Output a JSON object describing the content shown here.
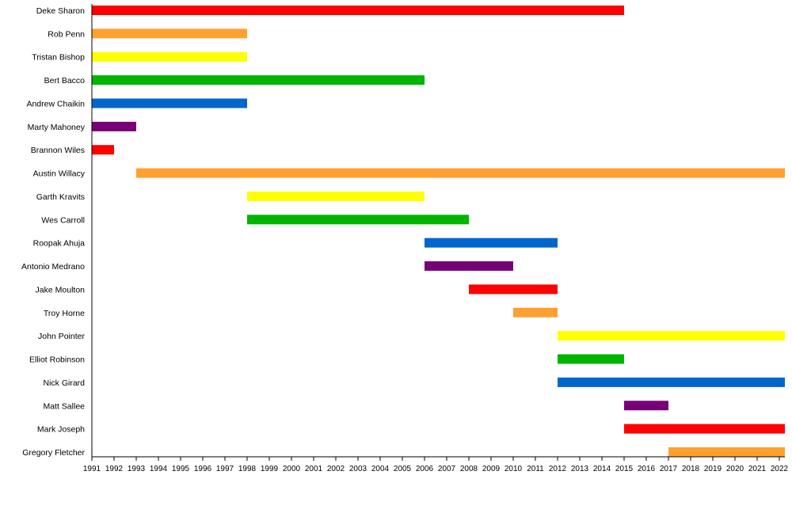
{
  "chart_data": {
    "type": "bar",
    "orientation": "horizontal-timeline",
    "title": "",
    "xlabel": "",
    "ylabel": "",
    "x_ticks": [
      1991,
      1992,
      1993,
      1994,
      1995,
      1996,
      1997,
      1998,
      1999,
      2000,
      2001,
      2002,
      2003,
      2004,
      2005,
      2006,
      2007,
      2008,
      2009,
      2010,
      2011,
      2012,
      2013,
      2014,
      2015,
      2016,
      2017,
      2018,
      2019,
      2020,
      2021,
      2022
    ],
    "xlim": [
      1991,
      2022.4
    ],
    "grid": false,
    "legend": "none",
    "colors": {
      "red": "#ff0000",
      "orange": "#ffa030",
      "yellow": "#ffff00",
      "green": "#00b400",
      "blue": "#0066cc",
      "purple": "#770077"
    },
    "series": [
      {
        "name": "Deke Sharon",
        "start": 1991,
        "end": 2015,
        "color": "red"
      },
      {
        "name": "Rob Penn",
        "start": 1991,
        "end": 1998,
        "color": "orange"
      },
      {
        "name": "Tristan Bishop",
        "start": 1991,
        "end": 1998,
        "color": "yellow"
      },
      {
        "name": "Bert Bacco",
        "start": 1991,
        "end": 2006,
        "color": "green"
      },
      {
        "name": "Andrew Chaikin",
        "start": 1991,
        "end": 1998,
        "color": "blue"
      },
      {
        "name": "Marty Mahoney",
        "start": 1991,
        "end": 1993,
        "color": "purple"
      },
      {
        "name": "Brannon Wiles",
        "start": 1991,
        "end": 1992,
        "color": "red"
      },
      {
        "name": "Austin Willacy",
        "start": 1993,
        "end": 2022.4,
        "color": "orange"
      },
      {
        "name": "Garth Kravits",
        "start": 1998,
        "end": 2006,
        "color": "yellow"
      },
      {
        "name": "Wes Carroll",
        "start": 1998,
        "end": 2008,
        "color": "green"
      },
      {
        "name": "Roopak Ahuja",
        "start": 2006,
        "end": 2012,
        "color": "blue"
      },
      {
        "name": "Antonio Medrano",
        "start": 2006,
        "end": 2010,
        "color": "purple"
      },
      {
        "name": "Jake Moulton",
        "start": 2008,
        "end": 2012,
        "color": "red"
      },
      {
        "name": "Troy Horne",
        "start": 2010,
        "end": 2012,
        "color": "orange"
      },
      {
        "name": "John Pointer",
        "start": 2012,
        "end": 2022.4,
        "color": "yellow"
      },
      {
        "name": "Elliot Robinson",
        "start": 2012,
        "end": 2015,
        "color": "green"
      },
      {
        "name": "Nick Girard",
        "start": 2012,
        "end": 2022.4,
        "color": "blue"
      },
      {
        "name": "Matt Sallee",
        "start": 2015,
        "end": 2017,
        "color": "purple"
      },
      {
        "name": "Mark Joseph",
        "start": 2015,
        "end": 2022.4,
        "color": "red"
      },
      {
        "name": "Gregory Fletcher",
        "start": 2017,
        "end": 2022.4,
        "color": "orange"
      }
    ]
  }
}
